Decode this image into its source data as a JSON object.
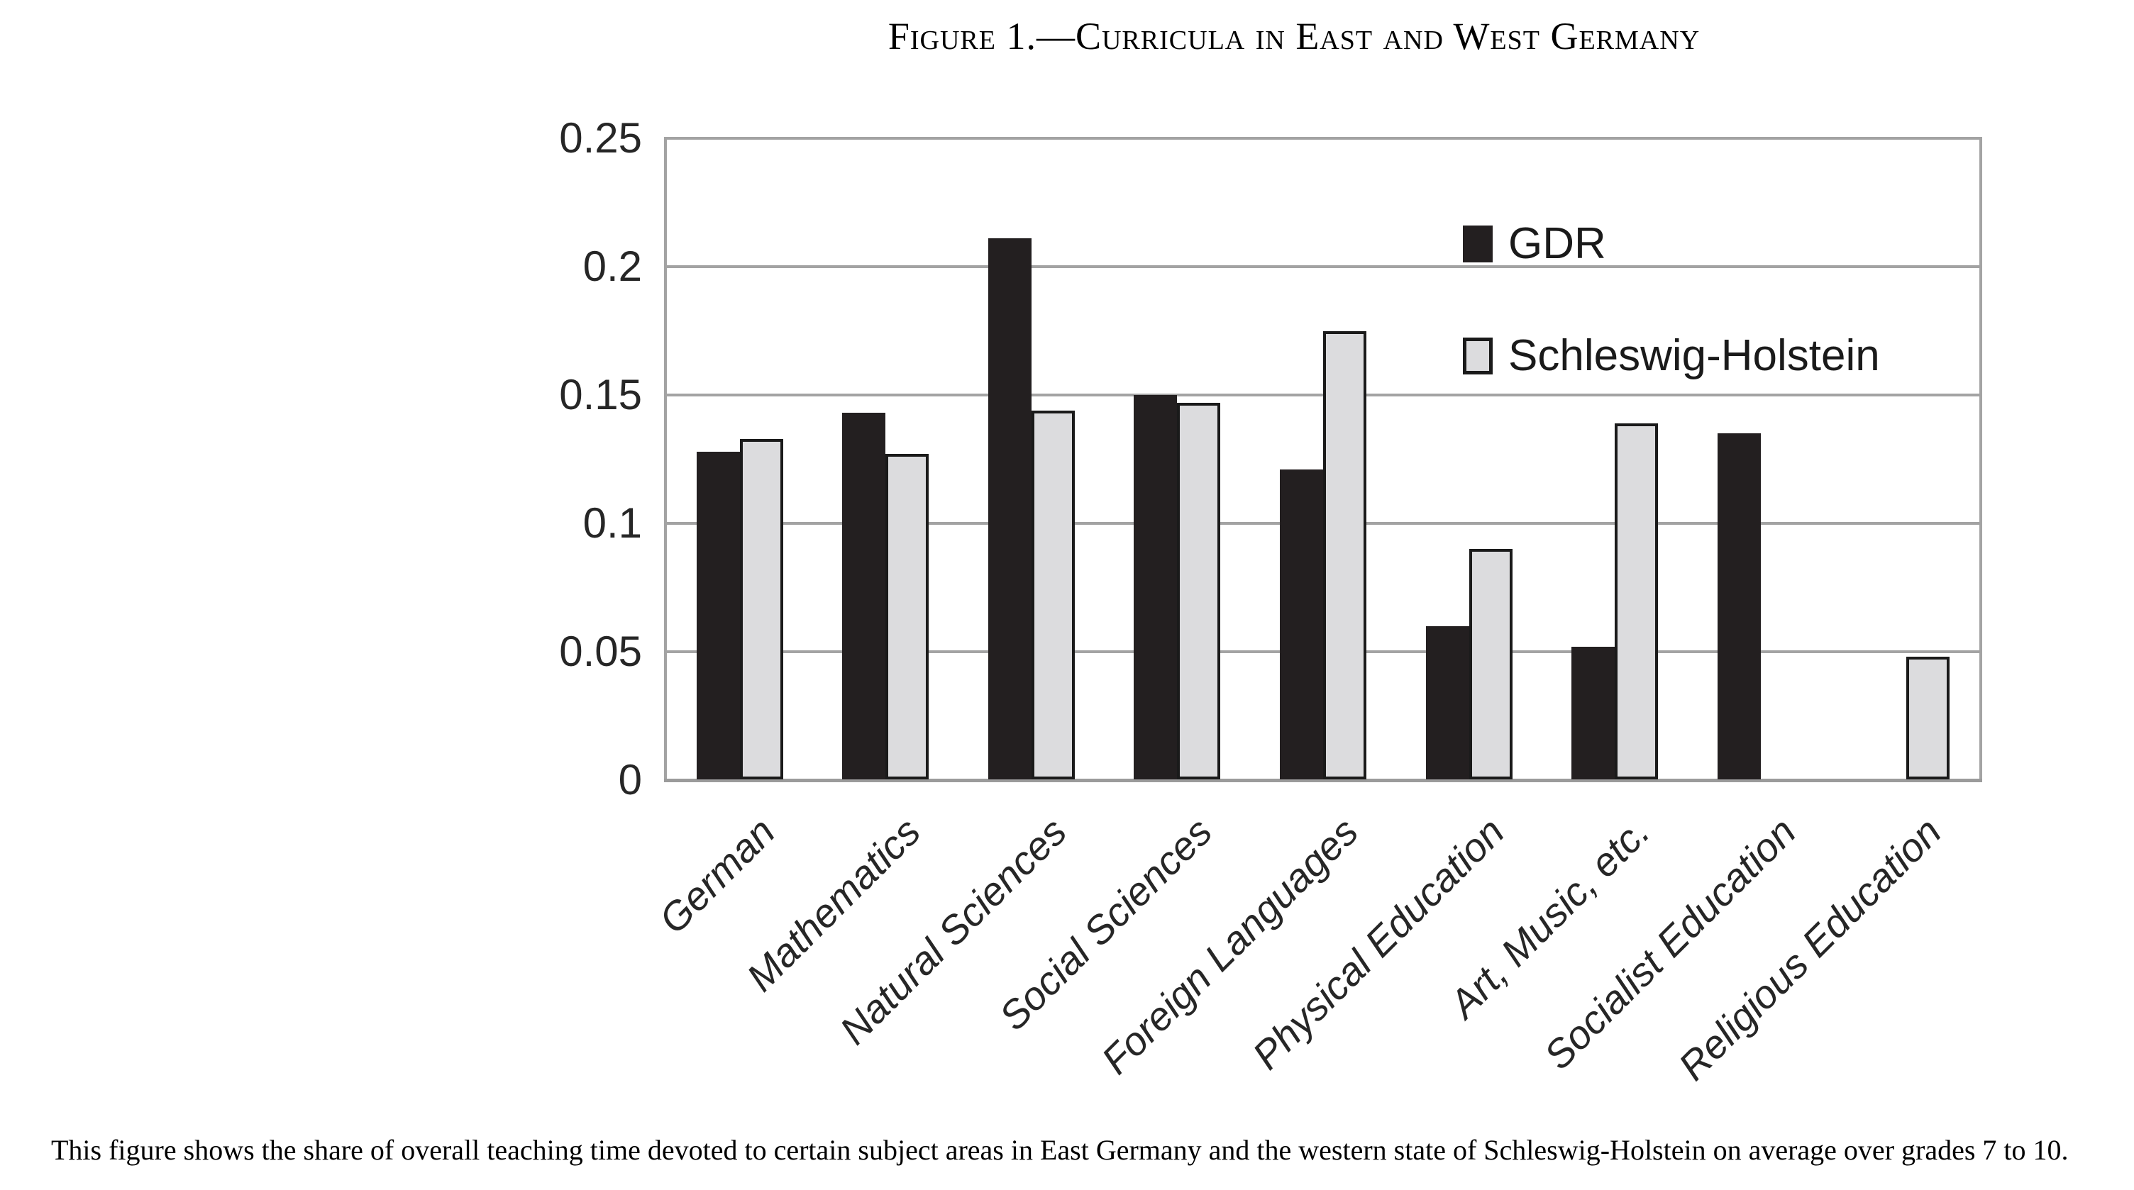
{
  "title": "Figure 1.—Curricula in East and West Germany",
  "caption": "This figure shows the share of overall teaching time devoted to certain subject areas in East Germany and the western state of Schleswig-Holstein on average over grades 7 to 10.",
  "chart_data": {
    "type": "bar",
    "title": "Figure 1.—Curricula in East and West Germany",
    "categories": [
      "German",
      "Mathematics",
      "Natural Sciences",
      "Social Sciences",
      "Foreign Languages",
      "Physical Education",
      "Art, Music, etc.",
      "Socialist Education",
      "Religious Education"
    ],
    "series": [
      {
        "name": "GDR",
        "color": "#231f20",
        "values": [
          0.128,
          0.143,
          0.211,
          0.15,
          0.121,
          0.06,
          0.052,
          0.135,
          0
        ]
      },
      {
        "name": "Schleswig-Holstein",
        "color": "#dcdcde",
        "border_color": "#1a1a1a",
        "values": [
          0.133,
          0.127,
          0.144,
          0.147,
          0.175,
          0.09,
          0.139,
          0,
          0.048
        ]
      }
    ],
    "xlabel": "",
    "ylabel": "",
    "ylim": [
      0,
      0.25
    ],
    "ytick_labels": [
      "0",
      "0.05",
      "0.1",
      "0.15",
      "0.2",
      "0.25"
    ],
    "yticks": [
      0,
      0.05,
      0.1,
      0.15,
      0.2,
      0.25
    ],
    "grid": "horizontal",
    "gridline_color": "#a3a3a3",
    "legend_position": "inside-top-right",
    "x_tick_label_rotation_deg": 45
  }
}
